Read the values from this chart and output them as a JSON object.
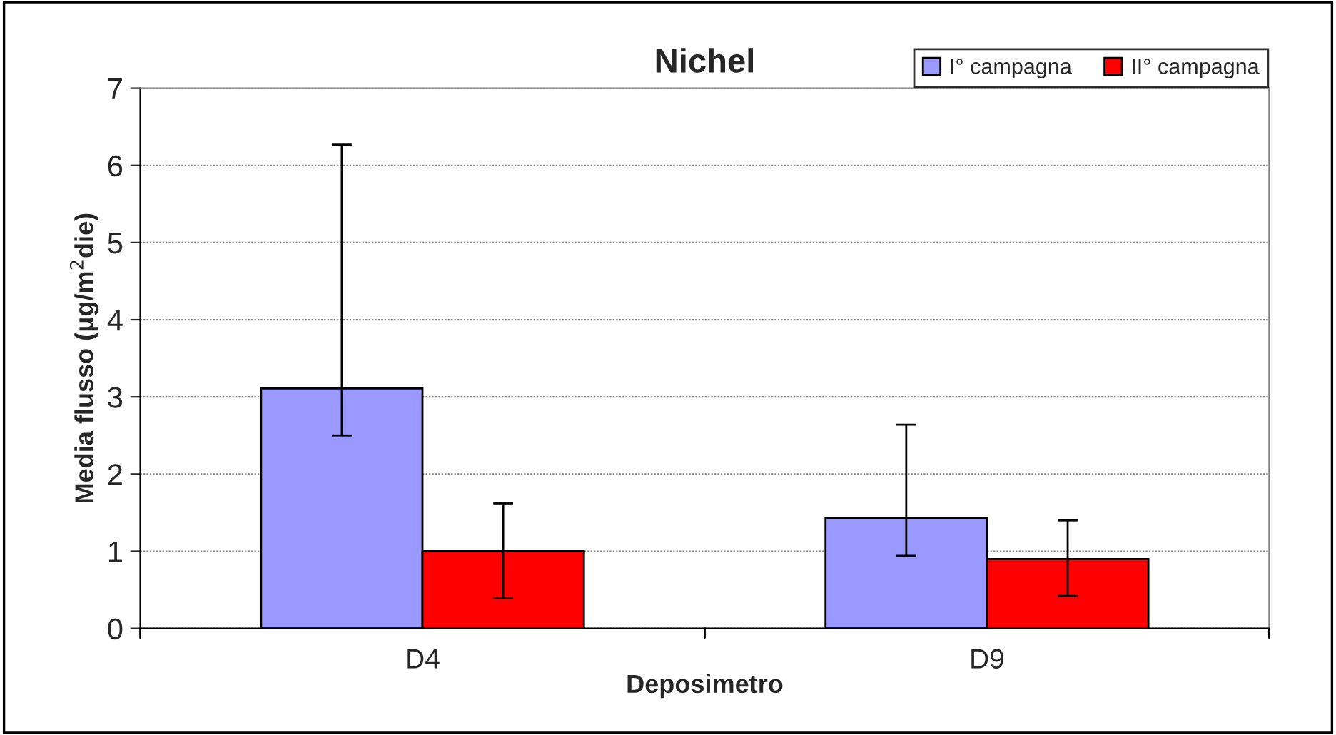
{
  "chart_data": {
    "type": "bar",
    "title": "Nichel",
    "xlabel": "Deposimetro",
    "ylabel": "Media flusso (μg/m$^{2}$die)",
    "categories": [
      "D4",
      "D9"
    ],
    "series": [
      {
        "name": "I° campagna",
        "color": "#9999ff",
        "values": [
          3.11,
          1.43
        ],
        "errors": [
          [
            2.5,
            6.27
          ],
          [
            0.94,
            2.64
          ]
        ]
      },
      {
        "name": "II° campagna",
        "color": "#ff0000",
        "values": [
          1.0,
          0.9
        ],
        "errors": [
          [
            0.39,
            1.62
          ],
          [
            0.42,
            1.4
          ]
        ]
      }
    ],
    "ylim": [
      0,
      7
    ],
    "yticks": [
      0,
      1,
      2,
      3,
      4,
      5,
      6,
      7
    ],
    "grid": "y",
    "legend": "top right"
  }
}
